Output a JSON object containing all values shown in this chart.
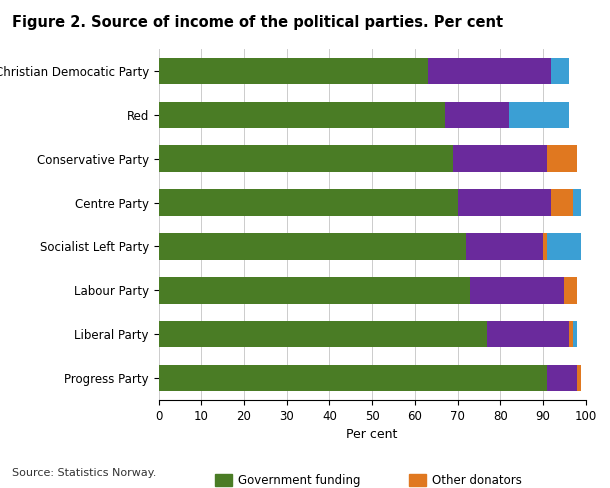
{
  "title": "Figure 2. Source of income of the political parties. Per cent",
  "parties": [
    "Christian Democatic Party",
    "Red",
    "Conservative Party",
    "Centre Party",
    "Socialist Left Party",
    "Labour Party",
    "Liberal Party",
    "Progress Party"
  ],
  "government_funding": [
    63,
    67,
    69,
    70,
    72,
    73,
    77,
    91
  ],
  "income_own_activities": [
    29,
    15,
    22,
    22,
    18,
    22,
    19,
    7
  ],
  "other_donators": [
    0,
    0,
    7,
    5,
    1,
    3,
    1,
    1
  ],
  "private_donators": [
    4,
    14,
    0,
    2,
    8,
    0,
    1,
    0
  ],
  "colors": {
    "government_funding": "#4a7c25",
    "income_own_activities": "#6a2a9c",
    "other_donators": "#e07820",
    "private_donators": "#3b9fd4"
  },
  "xlabel": "Per cent",
  "xlim": [
    0,
    100
  ],
  "xticks": [
    0,
    10,
    20,
    30,
    40,
    50,
    60,
    70,
    80,
    90,
    100
  ],
  "source": "Source: Statistics Norway.",
  "background_color": "#ffffff",
  "grid_color": "#cccccc"
}
